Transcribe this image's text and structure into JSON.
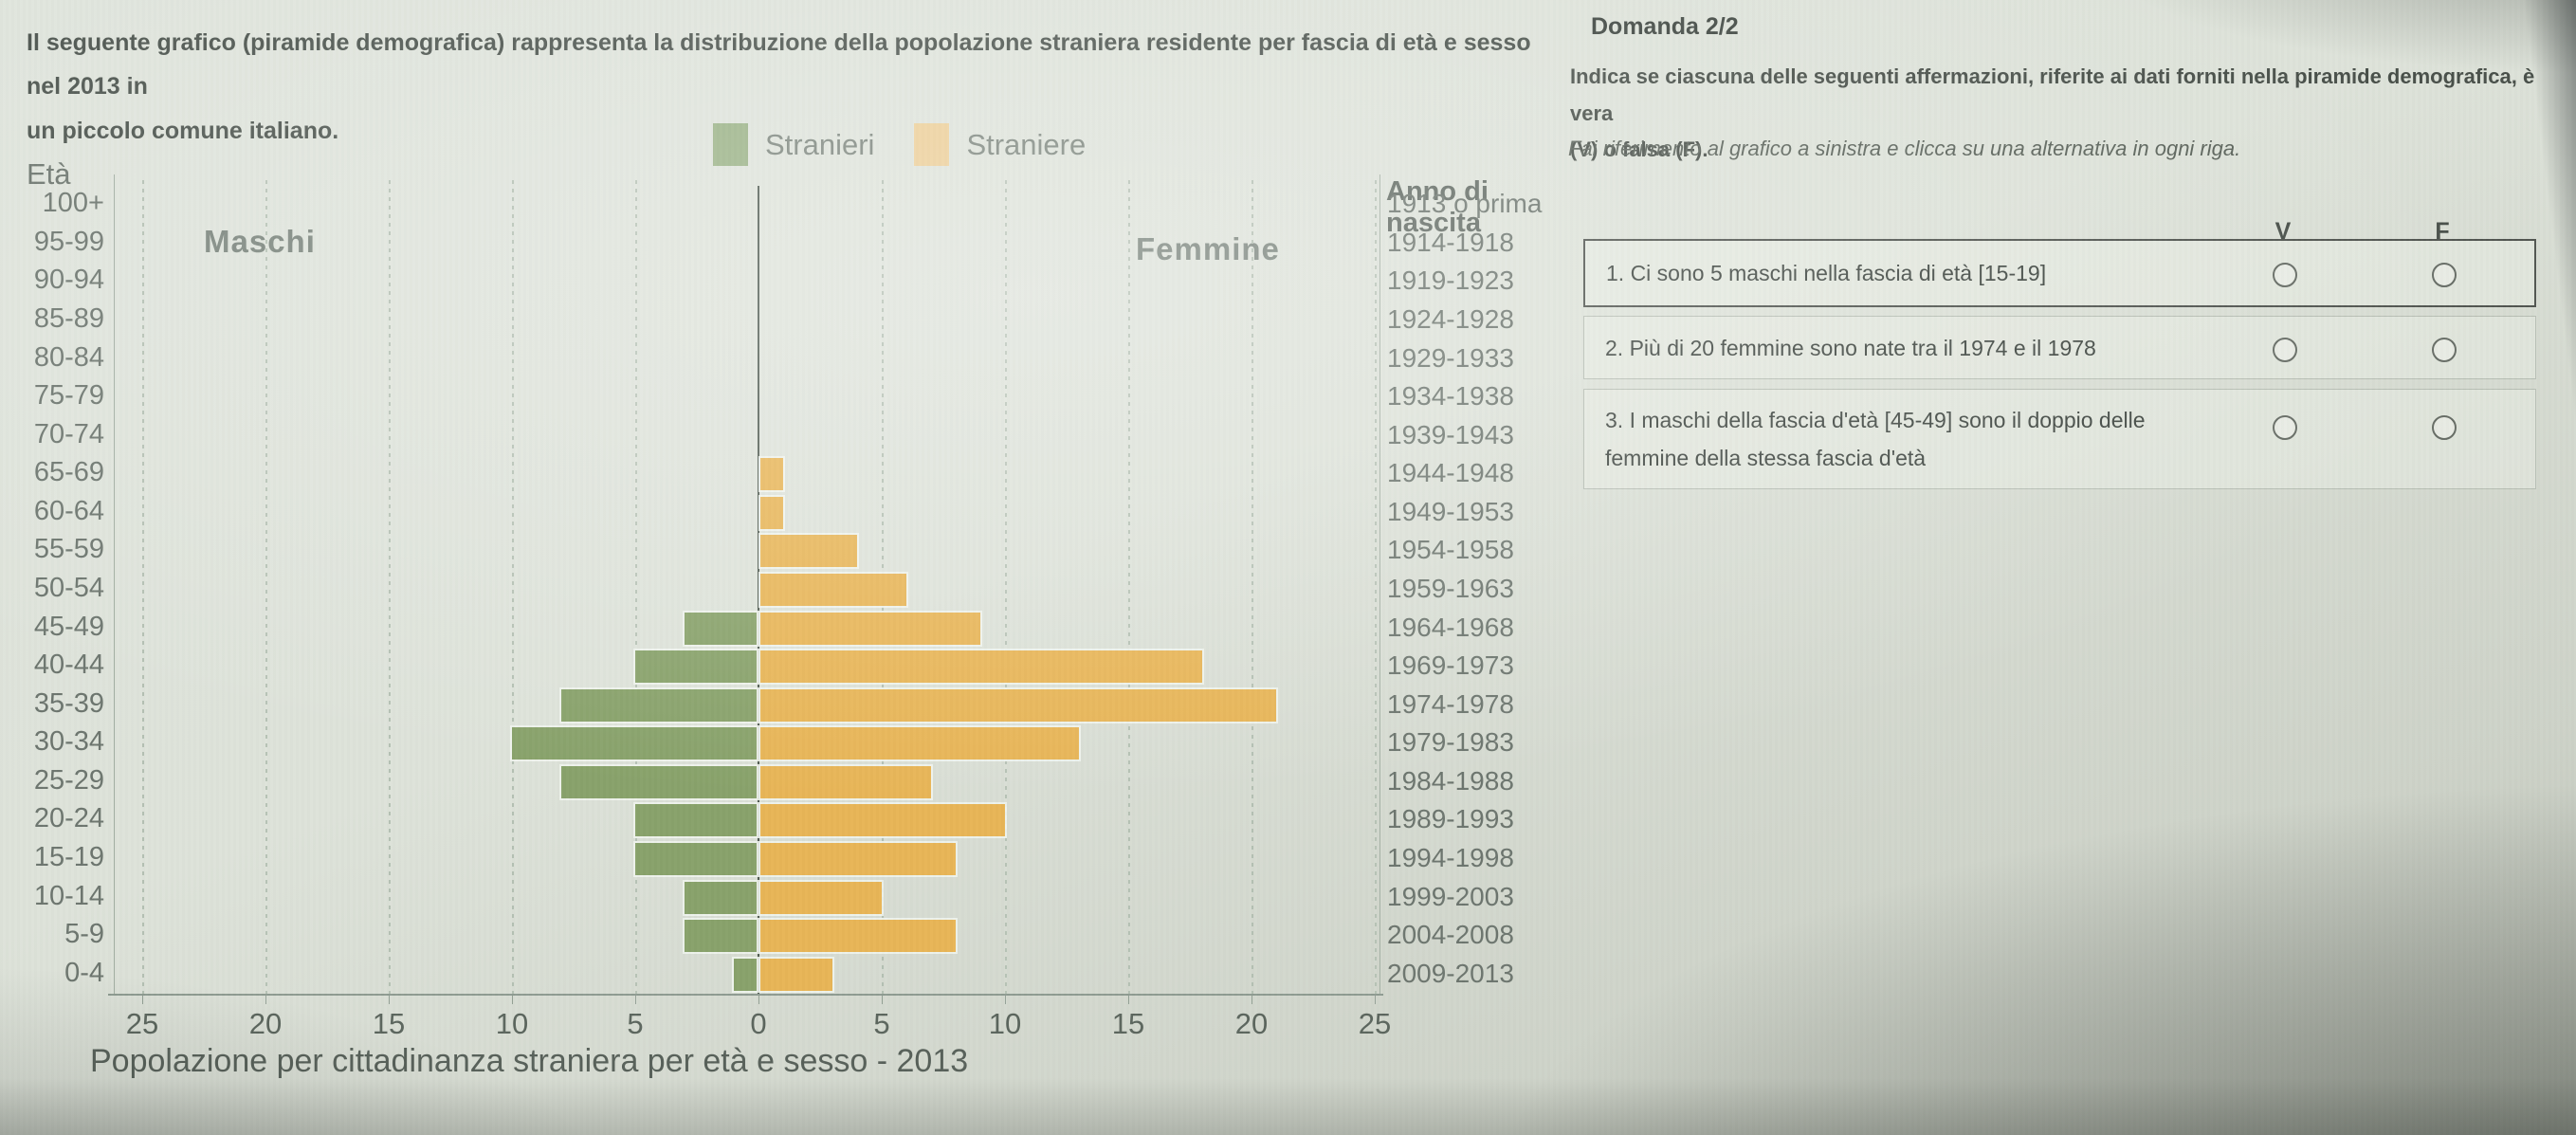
{
  "intro": {
    "lines": [
      "Il seguente grafico (piramide demografica) rappresenta la distribuzione della popolazione straniera residente per fascia di età e sesso nel 2013 in",
      "un piccolo comune italiano."
    ]
  },
  "chart": {
    "eta_header": "Età",
    "anno_header": "Anno di nascita",
    "maschi_label": "Maschi",
    "femmine_label": "Femmine",
    "x_tick_labels": [
      "25",
      "20",
      "15",
      "10",
      "5",
      "0",
      "5",
      "10",
      "15",
      "20",
      "25"
    ],
    "footer_title": "Popolazione per cittadinanza straniera per età e sesso - 2013"
  },
  "chart_data": {
    "type": "bar",
    "subtype": "population-pyramid",
    "title": "Popolazione per cittadinanza straniera per età e sesso - 2013",
    "categories_age": [
      "100+",
      "95-99",
      "90-94",
      "85-89",
      "80-84",
      "75-79",
      "70-74",
      "65-69",
      "60-64",
      "55-59",
      "50-54",
      "45-49",
      "40-44",
      "35-39",
      "30-34",
      "25-29",
      "20-24",
      "15-19",
      "10-14",
      "5-9",
      "0-4"
    ],
    "categories_birth_year": [
      "1913 o prima",
      "1914-1918",
      "1919-1923",
      "1924-1928",
      "1929-1933",
      "1934-1938",
      "1939-1943",
      "1944-1948",
      "1949-1953",
      "1954-1958",
      "1959-1963",
      "1964-1968",
      "1969-1973",
      "1974-1978",
      "1979-1983",
      "1984-1988",
      "1989-1993",
      "1994-1998",
      "1999-2003",
      "2004-2008",
      "2009-2013"
    ],
    "series": [
      {
        "name": "Stranieri",
        "side": "left",
        "values": [
          0,
          0,
          0,
          0,
          0,
          0,
          0,
          0,
          0,
          0,
          0,
          3,
          5,
          8,
          10,
          8,
          5,
          5,
          3,
          3,
          1
        ]
      },
      {
        "name": "Straniere",
        "side": "right",
        "values": [
          0,
          0,
          0,
          0,
          0,
          0,
          0,
          1,
          1,
          4,
          6,
          9,
          18,
          21,
          13,
          7,
          10,
          8,
          5,
          8,
          3
        ]
      }
    ],
    "xlim": [
      -25,
      25
    ],
    "x_tick_step": 5,
    "grid": "vertical-dashed",
    "legend_position": "top-center",
    "left_axis_title": "Età",
    "right_axis_title": "Anno di nascita",
    "left_group_label": "Maschi",
    "right_group_label": "Femmine"
  },
  "panel": {
    "title": "Domanda 2/2",
    "instruction_lines": [
      "Indica se ciascuna delle seguenti affermazioni, riferite ai dati forniti nella piramide demografica, è vera",
      "(V) o falsa (F)."
    ],
    "note": "Fai riferimento al grafico a sinistra e clicca su una alternativa in ogni riga.",
    "col_true": "V",
    "col_false": "F",
    "questions": [
      {
        "lines": [
          "1. Ci sono 5 maschi nella fascia di età [15-19]"
        ]
      },
      {
        "lines": [
          "2. Più di 20 femmine sono nate tra il 1974 e il 1978"
        ]
      },
      {
        "lines": [
          "3. I maschi della fascia d'età [45-49] sono il doppio delle",
          "femmine della stessa fascia d'età"
        ]
      }
    ]
  },
  "colors": {
    "background": "#dce1d8",
    "male_bar": "#87a169",
    "female_bar": "#e7b455",
    "legend_male": "#9ab286",
    "legend_female": "#ecce97",
    "grid": "#b4c0b3",
    "axis": "#8d9a90",
    "zero_line": "#505b52",
    "text_dark": "#3f4641",
    "text_gray": "#6b746d"
  }
}
